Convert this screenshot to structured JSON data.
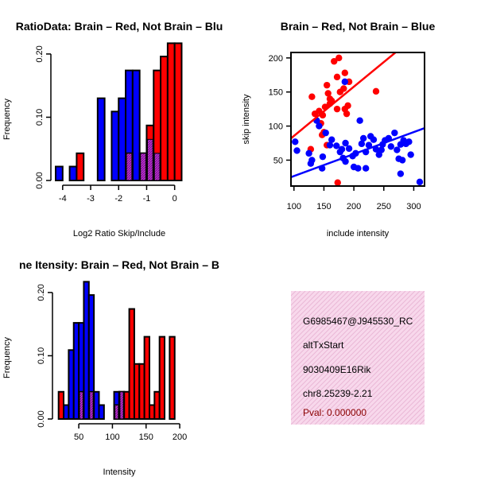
{
  "colors": {
    "red": "#ff0000",
    "blue": "#0000ff",
    "purple": "#a020f0",
    "panel_bg": "#f8d8ec",
    "pval": "#8b0000"
  },
  "chart_data": [
    {
      "type": "histogram",
      "title": "RatioData: Brain - Red, Not Brain - Blue",
      "title_display": "RatioData: Brain – Red, Not Brain – Blu",
      "xlabel": "Log2 Ratio Skip/Include",
      "ylabel": "Frequency",
      "xlim": [
        -4.25,
        0.35
      ],
      "ylim": [
        0,
        0.22
      ],
      "xticks": [
        "-4",
        "-3",
        "-2",
        "-1",
        "0"
      ],
      "xtick_values": [
        -4,
        -3,
        -2,
        -1,
        0
      ],
      "yticks": [
        "0.00",
        "0.10",
        "0.20"
      ],
      "ytick_values": [
        0,
        0.1,
        0.2
      ],
      "bin_width": 0.25,
      "series": [
        {
          "name": "Not Brain",
          "color": "blue",
          "bins": [
            [
              -4.25,
              0.022
            ],
            [
              -3.75,
              0.022
            ],
            [
              -2.75,
              0.13
            ],
            [
              -2.25,
              0.109
            ],
            [
              -2.0,
              0.13
            ],
            [
              -1.75,
              0.174
            ],
            [
              -1.5,
              0.174
            ],
            [
              -1.25,
              0.043
            ],
            [
              -1.0,
              0.065
            ],
            [
              -0.75,
              0.043
            ]
          ]
        },
        {
          "name": "Brain",
          "color": "red",
          "bins": [
            [
              -3.5,
              0.043
            ],
            [
              -1.75,
              0.043
            ],
            [
              -1.25,
              0.043
            ],
            [
              -1.0,
              0.087
            ],
            [
              -0.75,
              0.174
            ],
            [
              -0.5,
              0.196
            ],
            [
              -0.25,
              0.217
            ],
            [
              0.0,
              0.217
            ]
          ]
        }
      ]
    },
    {
      "type": "scatter",
      "title": "Brain - Red, Not Brain - Blue",
      "title_display": "Brain – Red, Not Brain – Blue",
      "xlabel": "include intensity",
      "ylabel": "skip intensity",
      "xlim": [
        95,
        318
      ],
      "ylim": [
        12,
        208
      ],
      "xticks": [
        "100",
        "150",
        "200",
        "250",
        "300"
      ],
      "xtick_values": [
        100,
        150,
        200,
        250,
        300
      ],
      "yticks": [
        "50",
        "100",
        "150",
        "200"
      ],
      "ytick_values": [
        50,
        100,
        150,
        200
      ],
      "series": [
        {
          "name": "Brain",
          "color": "red",
          "fit": [
            [
              95,
              82
            ],
            [
              318,
              243
            ]
          ],
          "points": [
            [
              167,
              195
            ],
            [
              175,
              200
            ],
            [
              185,
              178
            ],
            [
              172,
              172
            ],
            [
              183,
              155
            ],
            [
              177,
              150
            ],
            [
              160,
              140
            ],
            [
              155,
              160
            ],
            [
              157,
              148
            ],
            [
              163,
              137
            ],
            [
              160,
              133
            ],
            [
              152,
              128
            ],
            [
              142,
              122
            ],
            [
              148,
              116
            ],
            [
              135,
              118
            ],
            [
              130,
              143
            ],
            [
              145,
              104
            ],
            [
              150,
              91
            ],
            [
              172,
              125
            ],
            [
              185,
              125
            ],
            [
              188,
              118
            ],
            [
              190,
              130
            ],
            [
              192,
              165
            ],
            [
              237,
              151
            ],
            [
              173,
              17
            ],
            [
              128,
              66
            ],
            [
              155,
              72
            ],
            [
              147,
              87
            ]
          ]
        },
        {
          "name": "Not Brain",
          "color": "blue",
          "fit": [
            [
              95,
              25
            ],
            [
              318,
              97
            ]
          ],
          "points": [
            [
              102,
              77
            ],
            [
              105,
              64
            ],
            [
              125,
              60
            ],
            [
              130,
              50
            ],
            [
              128,
              45
            ],
            [
              138,
              108
            ],
            [
              142,
              100
            ],
            [
              153,
              90
            ],
            [
              148,
              55
            ],
            [
              147,
              38
            ],
            [
              160,
              72
            ],
            [
              163,
              80
            ],
            [
              171,
              71
            ],
            [
              177,
              62
            ],
            [
              180,
              66
            ],
            [
              186,
              75
            ],
            [
              186,
              48
            ],
            [
              185,
              165
            ],
            [
              182,
              53
            ],
            [
              192,
              67
            ],
            [
              200,
              40
            ],
            [
              198,
              56
            ],
            [
              203,
              60
            ],
            [
              210,
              108
            ],
            [
              213,
              74
            ],
            [
              216,
              82
            ],
            [
              220,
              62
            ],
            [
              220,
              38
            ],
            [
              207,
              38
            ],
            [
              225,
              72
            ],
            [
              228,
              85
            ],
            [
              233,
              80
            ],
            [
              237,
              66
            ],
            [
              242,
              58
            ],
            [
              246,
              65
            ],
            [
              248,
              73
            ],
            [
              252,
              79
            ],
            [
              258,
              82
            ],
            [
              262,
              70
            ],
            [
              268,
              90
            ],
            [
              272,
              65
            ],
            [
              278,
              73
            ],
            [
              283,
              79
            ],
            [
              287,
              74
            ],
            [
              292,
              77
            ],
            [
              275,
              52
            ],
            [
              281,
              50
            ],
            [
              278,
              30
            ],
            [
              310,
              18
            ],
            [
              295,
              58
            ]
          ]
        }
      ]
    },
    {
      "type": "histogram",
      "title": "Gene Itensity: Brain - Red, Not Brain - Blue",
      "title_display": "ne Itensity: Brain – Red, Not Brain – B",
      "xlabel": "Intensity",
      "ylabel": "Frequency",
      "xlim": [
        18,
        207
      ],
      "ylim": [
        0,
        0.22
      ],
      "xticks": [
        "50",
        "100",
        "150",
        "200"
      ],
      "xtick_values": [
        50,
        100,
        150,
        200
      ],
      "yticks": [
        "0.00",
        "0.10",
        "0.20"
      ],
      "ytick_values": [
        0,
        0.1,
        0.2
      ],
      "bin_width": 7.5,
      "series": [
        {
          "name": "Not Brain",
          "color": "blue",
          "bins": [
            [
              27.5,
              0.022
            ],
            [
              35,
              0.109
            ],
            [
              42.5,
              0.152
            ],
            [
              50,
              0.152
            ],
            [
              57.5,
              0.217
            ],
            [
              65,
              0.196
            ],
            [
              72.5,
              0.043
            ],
            [
              80,
              0.022
            ],
            [
              102.5,
              0.043
            ],
            [
              110,
              0.043
            ]
          ]
        },
        {
          "name": "Brain",
          "color": "red",
          "bins": [
            [
              20,
              0.043
            ],
            [
              50,
              0.043
            ],
            [
              65,
              0.043
            ],
            [
              102.5,
              0.022
            ],
            [
              110,
              0.043
            ],
            [
              117.5,
              0.043
            ],
            [
              125,
              0.174
            ],
            [
              132.5,
              0.087
            ],
            [
              140,
              0.087
            ],
            [
              147.5,
              0.13
            ],
            [
              155,
              0.022
            ],
            [
              162.5,
              0.043
            ],
            [
              170,
              0.13
            ],
            [
              185,
              0.13
            ]
          ]
        }
      ]
    }
  ],
  "info_panel": {
    "lines": [
      "G6985467@J945530_RC",
      "altTxStart",
      "9030409E16Rik",
      "chr8.25239-2.21"
    ],
    "pval": "Pval: 0.000000"
  }
}
